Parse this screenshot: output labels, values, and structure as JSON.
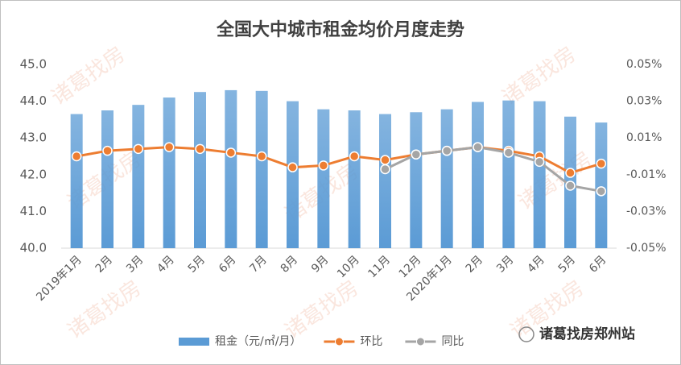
{
  "chart_data": {
    "type": "bar-line",
    "title": "全国大中城市租金均价月度走势",
    "watermark": "诸葛找房",
    "brand": "诸葛找房郑州站",
    "categories": [
      "2019年1月",
      "2月",
      "3月",
      "4月",
      "5月",
      "6月",
      "7月",
      "8月",
      "9月",
      "10月",
      "11月",
      "12月",
      "2020年1月",
      "2月",
      "3月",
      "4月",
      "5月",
      "6月"
    ],
    "series": [
      {
        "name": "租金（元/㎡/月）",
        "type": "bar",
        "color": "#5b9bd5",
        "values": [
          43.65,
          43.75,
          43.9,
          44.1,
          44.25,
          44.3,
          44.28,
          44.0,
          43.78,
          43.75,
          43.65,
          43.7,
          43.78,
          43.98,
          44.02,
          44.0,
          43.58,
          43.42
        ]
      },
      {
        "name": "环比",
        "type": "line",
        "axis": "y2",
        "color": "#ed7d31",
        "values": [
          0.0,
          0.003,
          0.004,
          0.005,
          0.004,
          0.002,
          0.0,
          -0.006,
          -0.005,
          0.0,
          -0.002,
          0.001,
          0.003,
          0.005,
          0.003,
          0.0,
          -0.009,
          -0.004
        ]
      },
      {
        "name": "同比",
        "type": "line",
        "axis": "y2",
        "color": "#a5a5a5",
        "values": [
          null,
          null,
          null,
          null,
          null,
          null,
          null,
          null,
          null,
          null,
          -0.007,
          0.001,
          0.003,
          0.005,
          0.002,
          -0.003,
          -0.016,
          -0.019
        ]
      }
    ],
    "ylim": [
      40,
      45
    ],
    "yticks": [
      {
        "value": 40,
        "label": "40.0"
      },
      {
        "value": 41,
        "label": "41.0"
      },
      {
        "value": 42,
        "label": "42.0"
      },
      {
        "value": 43,
        "label": "43.0"
      },
      {
        "value": 44,
        "label": "44.0"
      },
      {
        "value": 45,
        "label": "45.0"
      }
    ],
    "y2lim": [
      -0.05,
      0.05
    ],
    "y2ticks": [
      {
        "value": -0.05,
        "label": "-0.05%"
      },
      {
        "value": -0.03,
        "label": "-0.03%"
      },
      {
        "value": -0.01,
        "label": "-0.01%"
      },
      {
        "value": 0.01,
        "label": "0.01%"
      },
      {
        "value": 0.03,
        "label": "0.03%"
      },
      {
        "value": 0.05,
        "label": "0.05%"
      }
    ]
  }
}
